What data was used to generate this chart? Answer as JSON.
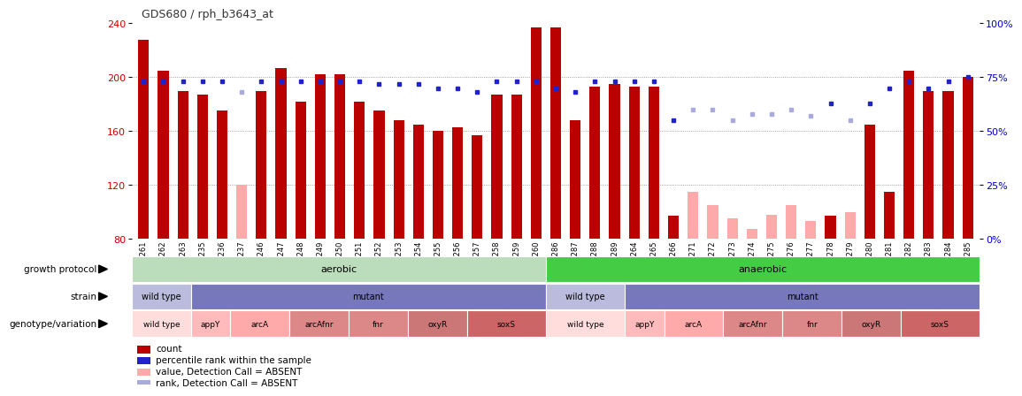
{
  "title": "GDS680 / rph_b3643_at",
  "samples": [
    "GSM18261",
    "GSM18262",
    "GSM18263",
    "GSM18235",
    "GSM18236",
    "GSM18237",
    "GSM18246",
    "GSM18247",
    "GSM18248",
    "GSM18249",
    "GSM18250",
    "GSM18251",
    "GSM18252",
    "GSM18253",
    "GSM18254",
    "GSM18255",
    "GSM18256",
    "GSM18257",
    "GSM18258",
    "GSM18259",
    "GSM18260",
    "GSM18286",
    "GSM18287",
    "GSM18288",
    "GSM18289",
    "GSM18264",
    "GSM18265",
    "GSM18266",
    "GSM18271",
    "GSM18272",
    "GSM18273",
    "GSM18274",
    "GSM18275",
    "GSM18276",
    "GSM18277",
    "GSM18278",
    "GSM18279",
    "GSM18280",
    "GSM18281",
    "GSM18282",
    "GSM18283",
    "GSM18284",
    "GSM18285"
  ],
  "bar_values": [
    228,
    205,
    190,
    187,
    175,
    120,
    190,
    207,
    182,
    202,
    202,
    182,
    175,
    168,
    165,
    160,
    163,
    157,
    187,
    187,
    237,
    237,
    168,
    193,
    195,
    193,
    193,
    97,
    115,
    105,
    95,
    87,
    98,
    105,
    93,
    97,
    100,
    165,
    115,
    205,
    190,
    190,
    200
  ],
  "absent_bars": [
    false,
    false,
    false,
    false,
    false,
    true,
    false,
    false,
    false,
    false,
    false,
    false,
    false,
    false,
    false,
    false,
    false,
    false,
    false,
    false,
    false,
    false,
    false,
    false,
    false,
    false,
    false,
    false,
    true,
    true,
    true,
    true,
    true,
    true,
    true,
    false,
    true,
    false,
    false,
    false,
    false,
    false,
    false
  ],
  "rank_values": [
    73,
    73,
    73,
    73,
    73,
    68,
    73,
    73,
    73,
    73,
    73,
    73,
    72,
    72,
    72,
    70,
    70,
    68,
    73,
    73,
    73,
    70,
    68,
    73,
    73,
    73,
    73,
    55,
    60,
    60,
    55,
    58,
    58,
    60,
    57,
    63,
    55,
    63,
    70,
    73,
    70,
    73,
    75
  ],
  "absent_ranks": [
    false,
    false,
    false,
    false,
    false,
    true,
    false,
    false,
    false,
    false,
    false,
    false,
    false,
    false,
    false,
    false,
    false,
    false,
    false,
    false,
    false,
    false,
    false,
    false,
    false,
    false,
    false,
    false,
    true,
    true,
    true,
    true,
    true,
    true,
    true,
    false,
    true,
    false,
    false,
    false,
    false,
    false,
    false
  ],
  "ymin": 80,
  "ymax": 240,
  "yticks": [
    80,
    120,
    160,
    200,
    240
  ],
  "right_yticks": [
    0,
    25,
    50,
    75,
    100
  ],
  "bar_color": "#bb0000",
  "bar_absent_color": "#ffaaaa",
  "rank_color": "#2222cc",
  "rank_absent_color": "#aaaadd",
  "grid_color": "#888888",
  "title_color": "#333333",
  "left_label_color": "#cc0000",
  "right_label_color": "#0000cc",
  "aerobic_color": "#bbddbb",
  "anaerobic_color": "#44cc44",
  "wild_type_strain_color_aerobic": "#bbbbdd",
  "mutant_strain_color": "#7777bb",
  "wild_type_strain_color_anaerobic": "#bbbbdd",
  "aerobic_count": 21,
  "anaerobic_count": 22,
  "legend_items": [
    "count",
    "percentile rank within the sample",
    "value, Detection Call = ABSENT",
    "rank, Detection Call = ABSENT"
  ],
  "legend_colors": [
    "#bb0000",
    "#2222cc",
    "#ffaaaa",
    "#aaaadd"
  ],
  "geno_aerobic": [
    {
      "label": "wild type",
      "count": 3,
      "color": "#ffdddd"
    },
    {
      "label": "appY",
      "count": 2,
      "color": "#ffbbbb"
    },
    {
      "label": "arcA",
      "count": 3,
      "color": "#ffaaaa"
    },
    {
      "label": "arcAfnr",
      "count": 3,
      "color": "#dd8888"
    },
    {
      "label": "fnr",
      "count": 3,
      "color": "#dd8888"
    },
    {
      "label": "oxyR",
      "count": 3,
      "color": "#cc7777"
    },
    {
      "label": "soxS",
      "count": 4,
      "color": "#cc6666"
    }
  ],
  "geno_anaerobic": [
    {
      "label": "wild type",
      "count": 4,
      "color": "#ffdddd"
    },
    {
      "label": "appY",
      "count": 2,
      "color": "#ffbbbb"
    },
    {
      "label": "arcA",
      "count": 3,
      "color": "#ffaaaa"
    },
    {
      "label": "arcAfnr",
      "count": 3,
      "color": "#dd8888"
    },
    {
      "label": "fnr",
      "count": 3,
      "color": "#dd8888"
    },
    {
      "label": "oxyR",
      "count": 3,
      "color": "#cc7777"
    },
    {
      "label": "soxS",
      "count": 4,
      "color": "#cc6666"
    }
  ]
}
